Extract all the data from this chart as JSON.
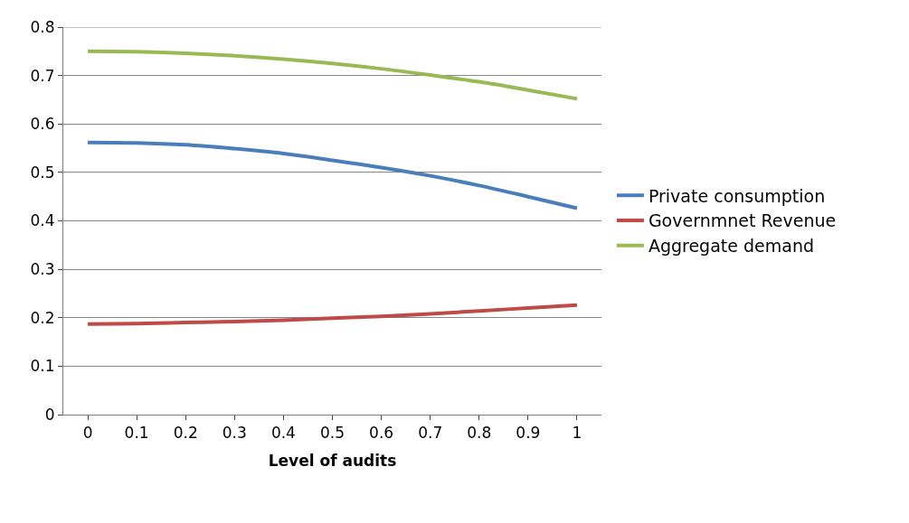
{
  "chart_data": {
    "type": "line",
    "xlabel": "Level of audits",
    "categories": [
      "0",
      "0.1",
      "0.2",
      "0.3",
      "0.4",
      "0.5",
      "0.6",
      "0.7",
      "0.8",
      "0.9",
      "1"
    ],
    "series": [
      {
        "name": "Private consumption",
        "color": "#4a7ebb",
        "values": [
          0.562,
          0.561,
          0.557,
          0.549,
          0.539,
          0.525,
          0.51,
          0.493,
          0.473,
          0.45,
          0.426
        ]
      },
      {
        "name": "Governmnet Revenue",
        "color": "#be4b48",
        "values": [
          0.187,
          0.188,
          0.19,
          0.192,
          0.195,
          0.199,
          0.203,
          0.208,
          0.214,
          0.22,
          0.226
        ]
      },
      {
        "name": "Aggregate demand",
        "color": "#98b954",
        "values": [
          0.75,
          0.749,
          0.746,
          0.741,
          0.734,
          0.725,
          0.714,
          0.701,
          0.687,
          0.67,
          0.652
        ]
      }
    ],
    "ylim": [
      0,
      0.8
    ],
    "yticks": [
      0,
      0.1,
      0.2,
      0.3,
      0.4,
      0.5,
      0.6,
      0.7,
      0.8
    ],
    "grid": "y",
    "legend": "right",
    "marker": "none",
    "line_style": "solid"
  }
}
